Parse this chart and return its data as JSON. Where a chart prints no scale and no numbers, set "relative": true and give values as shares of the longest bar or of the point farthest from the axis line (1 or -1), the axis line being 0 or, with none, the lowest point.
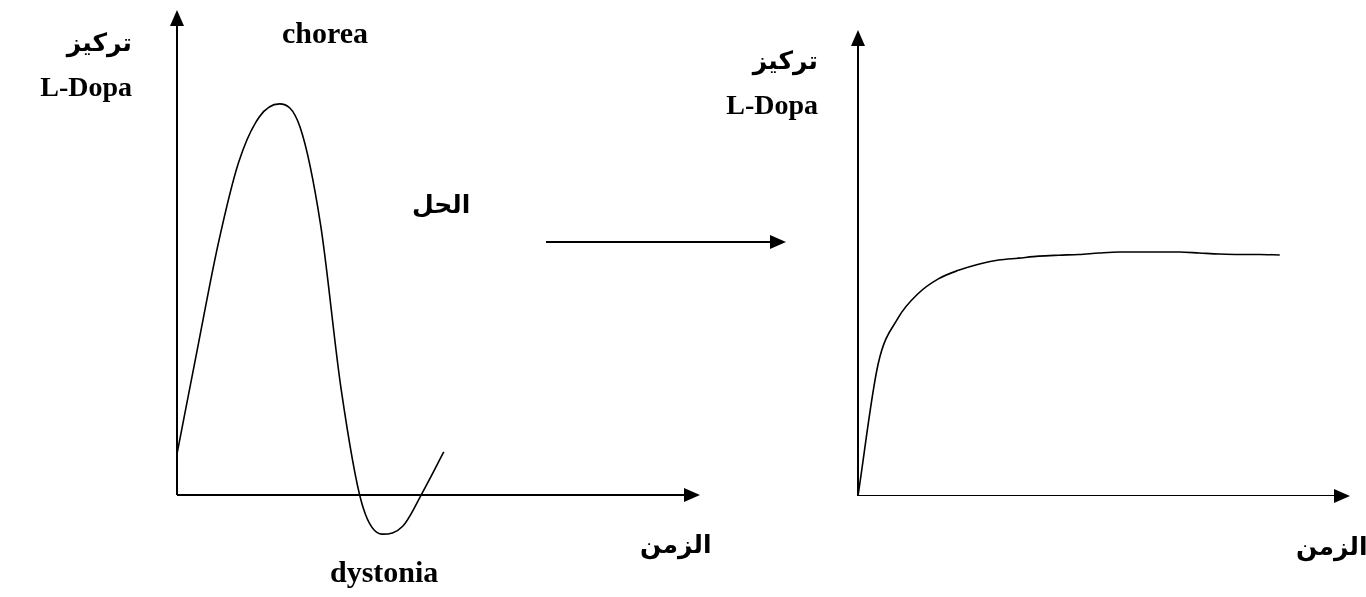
{
  "chart_data": [
    {
      "type": "line",
      "relative": true,
      "ylabel": "تركيز\nL-Dopa",
      "xlabel": "الزمن",
      "annotations": [
        "chorea",
        "dystonia"
      ],
      "legend": false,
      "marker": "none",
      "categories": [
        null,
        null,
        null,
        null,
        null,
        null,
        null,
        null,
        null,
        null,
        null,
        null,
        null,
        null,
        null,
        null,
        null,
        null,
        null,
        null,
        null,
        null,
        null,
        null,
        null,
        null
      ],
      "series": [
        {
          "color": "#000000",
          "values": [
            0.105,
            0.375,
            0.64,
            0.85,
            0.966,
            1,
            0.94,
            0.69,
            0.27,
            -0.02,
            -0.1,
            -0.08,
            0.01,
            0.11,
            null,
            null,
            null,
            null,
            null,
            null,
            null,
            null,
            null,
            null,
            null,
            null
          ]
        }
      ]
    },
    {
      "type": "line",
      "relative": true,
      "ylabel": "تركيز\nL-Dopa",
      "xlabel": "الزمن",
      "annotations": [
        "الحل"
      ],
      "legend": false,
      "marker": "none",
      "categories": [
        null,
        null,
        null,
        null,
        null,
        null,
        null,
        null,
        null,
        null,
        null,
        null,
        null,
        null,
        null,
        null,
        null,
        null,
        null,
        null,
        null,
        null,
        null,
        null,
        null
      ],
      "series": [
        {
          "color": "#000000",
          "values": [
            0,
            0.54,
            0.73,
            0.83,
            0.89,
            0.925,
            0.95,
            0.967,
            0.975,
            0.983,
            0.987,
            0.99,
            0.996,
            1,
            1,
            1,
            1,
            0.996,
            0.992,
            0.99,
            0.99,
            0.988,
            null,
            null,
            null
          ]
        }
      ]
    }
  ]
}
